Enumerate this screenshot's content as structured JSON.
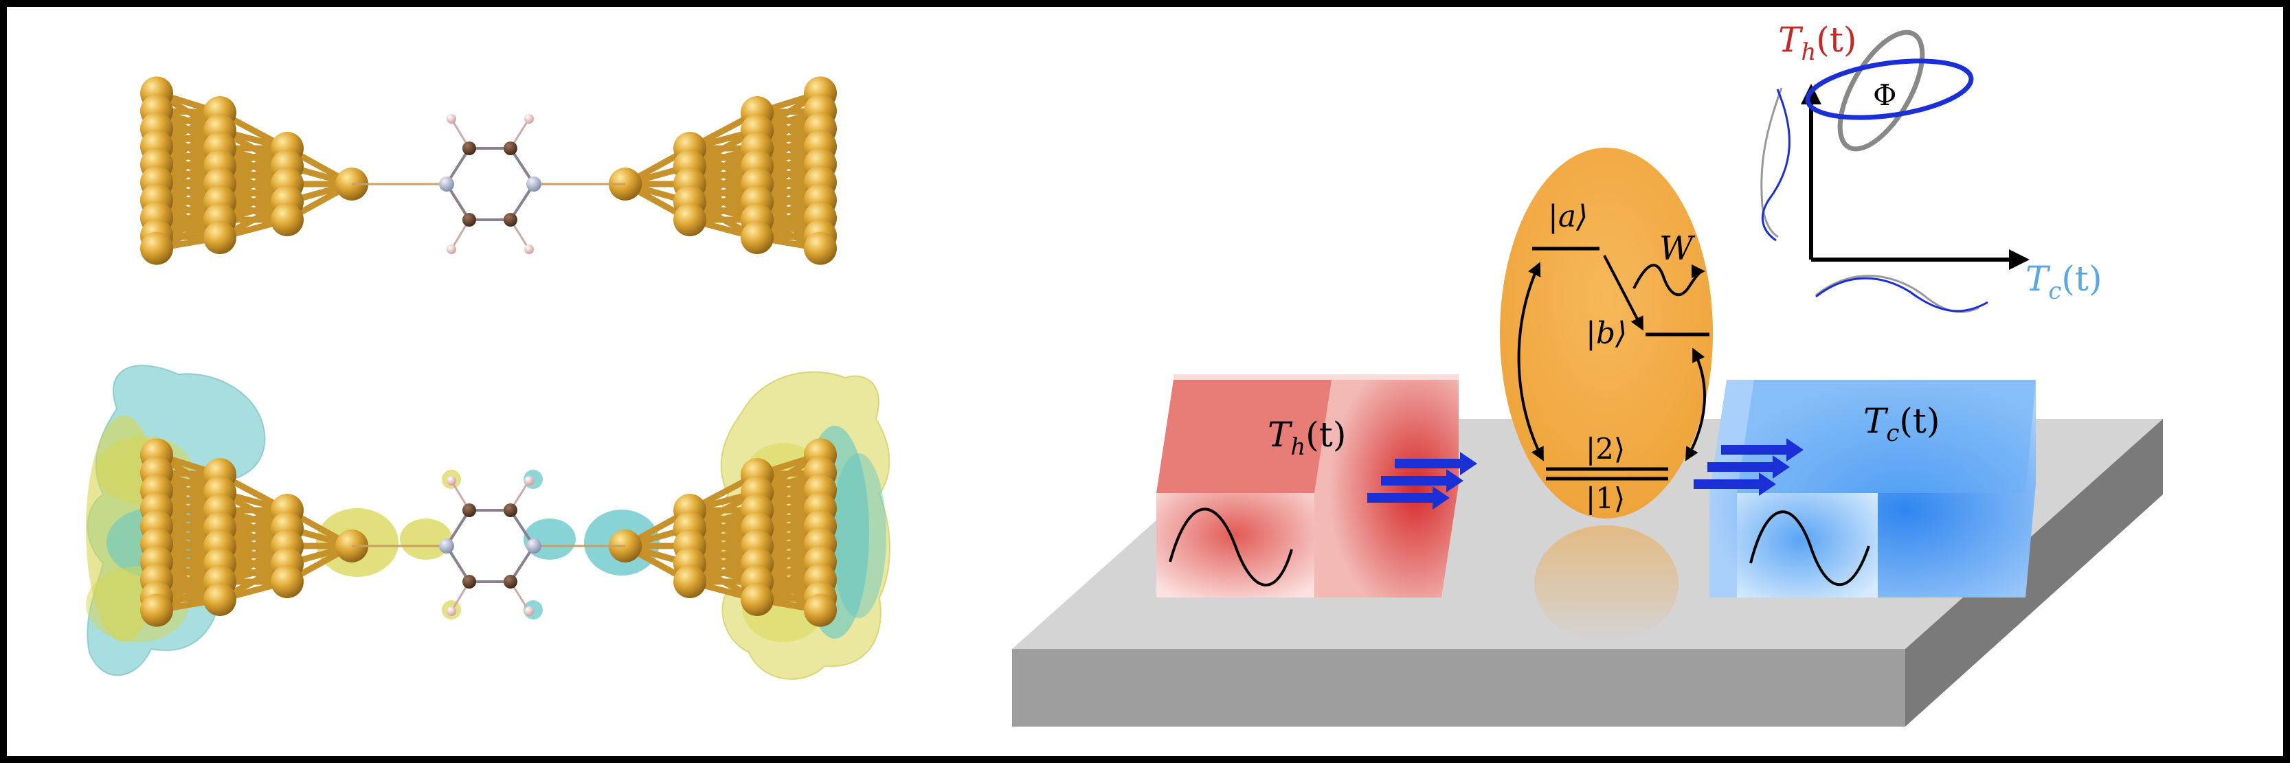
{
  "labels": {
    "hot_reservoir": "T",
    "hot_sub": "h",
    "hot_arg": "(t)",
    "cold_reservoir": "T",
    "cold_sub": "c",
    "cold_arg": "(t)",
    "plot_y_main": "T",
    "plot_y_sub": "h",
    "plot_y_arg": "(t)",
    "plot_x_main": "T",
    "plot_x_sub": "c",
    "plot_x_arg": "(t)",
    "phase": "Φ",
    "work": "W",
    "level_a": "|a⟩",
    "level_b": "|b⟩",
    "level_2": "|2⟩",
    "level_1": "|1⟩"
  },
  "colors": {
    "gold_atom": "#d9a028",
    "bond": "#c8922a",
    "nitrogen": "#9aa6bf",
    "carbon": "#5a3a26",
    "hydrogen": "#d8a0a0",
    "iso_cyan": "#5fc4c8",
    "iso_yellow": "#d8d650",
    "hot_red": "#d32f2f",
    "cold_blue": "#3d8ff0",
    "arrow_blue": "#1a2fd6",
    "ellipse_orange": "#f0a640",
    "plot_blue": "#1a2fd6",
    "plot_gray": "#888888",
    "label_red": "#c62828",
    "label_blue": "#5aa7e6"
  },
  "icons": [
    "sine-wave-icon",
    "flow-arrows-icon",
    "wavy-arrow-icon"
  ]
}
